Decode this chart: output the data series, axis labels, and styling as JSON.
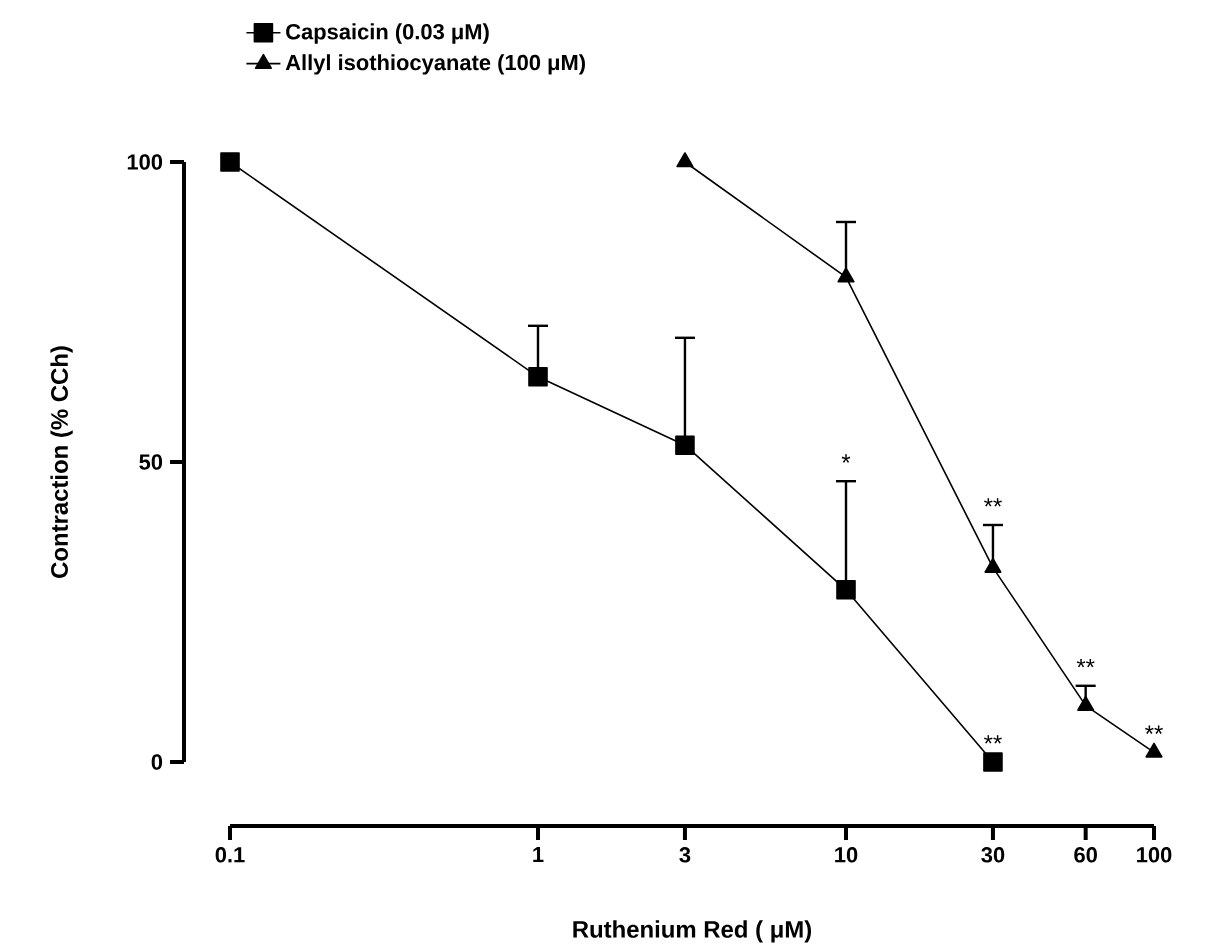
{
  "chart_data": {
    "type": "line",
    "xlabel": "Ruthenium Red ( μM)",
    "ylabel": "Contraction (% CCh)",
    "log": "x",
    "xlim": [
      0.1,
      100
    ],
    "ylim": [
      0,
      100
    ],
    "xticks": [
      0.1,
      1,
      3,
      10,
      30,
      60,
      100
    ],
    "yticks": [
      0,
      50,
      100
    ],
    "legend": "top left",
    "grid": false,
    "series": [
      {
        "name": "Capsaicin (0.03 μM)",
        "color": "#000000",
        "marker": "square",
        "x": [
          0.1,
          1,
          3,
          10,
          30
        ],
        "values": [
          100,
          64.2,
          52.8,
          28.7,
          0
        ],
        "errors": [
          null,
          [
            64.2,
            72.7
          ],
          [
            52.8,
            70.7
          ],
          [
            28.7,
            46.8
          ],
          null
        ]
      },
      {
        "name": "Allyl isothiocyanate (100 μM)",
        "color": "#000000",
        "marker": "triangle",
        "x": [
          3,
          10,
          30,
          60,
          100
        ],
        "values": [
          100,
          80.8,
          32.4,
          9.4,
          1.6
        ],
        "errors": [
          null,
          [
            80.8,
            90
          ],
          [
            32.4,
            39.5
          ],
          [
            9.4,
            12.7
          ],
          null
        ]
      }
    ],
    "annotations": [
      {
        "text": "*",
        "x": 10,
        "y": 46.8
      },
      {
        "text": "**",
        "x": 30,
        "y": 0
      },
      {
        "text": "**",
        "x": 30,
        "y": 39.5
      },
      {
        "text": "**",
        "x": 60,
        "y": 12.7
      },
      {
        "text": "**",
        "x": 100,
        "y": 1.6
      }
    ]
  }
}
